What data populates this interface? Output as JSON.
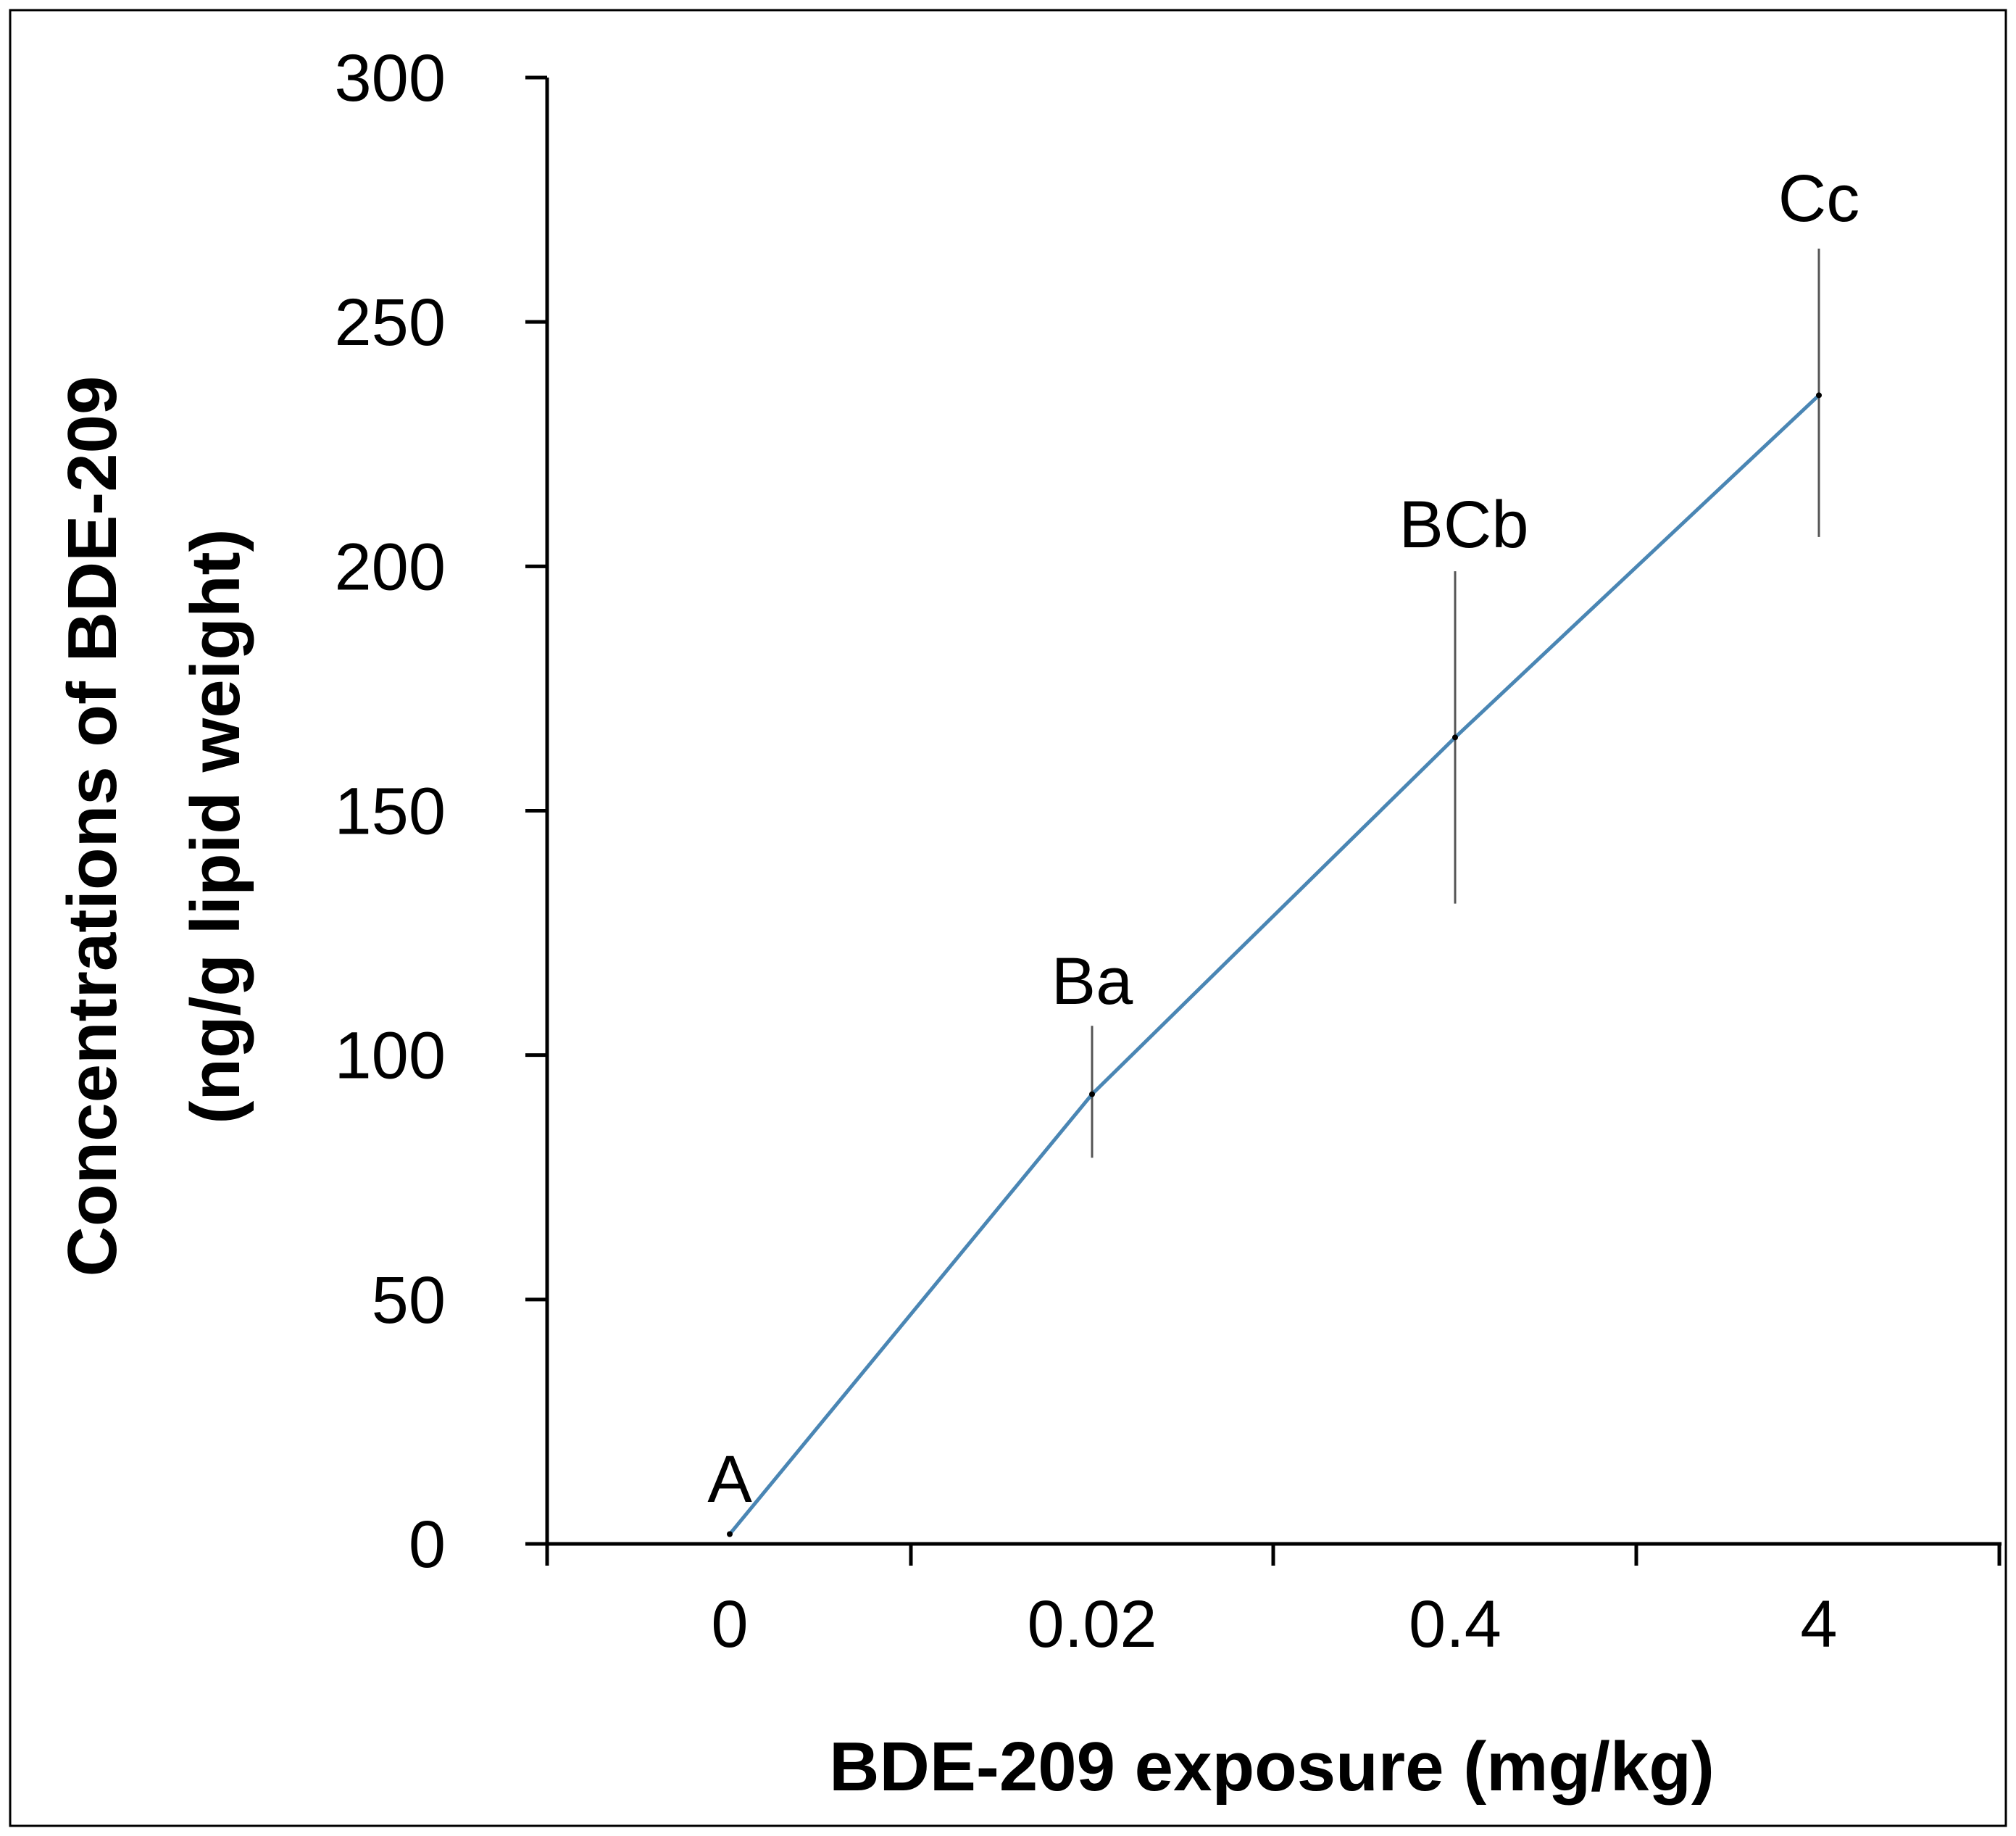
{
  "chart_data": {
    "type": "line",
    "categories": [
      "0",
      "0.02",
      "0.4",
      "4"
    ],
    "values": [
      2,
      92,
      165,
      235
    ],
    "error_bars": [
      {
        "low": 2,
        "high": 2
      },
      {
        "low": 79,
        "high": 106
      },
      {
        "low": 131,
        "high": 199
      },
      {
        "low": 206,
        "high": 265
      }
    ],
    "point_labels": [
      "A",
      "Ba",
      "BCb",
      "Cc"
    ],
    "xlabel": "BDE-209 exposure (mg/kg)",
    "ylabel_lines": [
      "Concentrations of BDE-209",
      "(ng/g lipid weight)"
    ],
    "ylim": [
      0,
      300
    ],
    "yticks": [
      0,
      50,
      100,
      150,
      200,
      250,
      300
    ],
    "ytick_labels": [
      "0",
      "50",
      "100",
      "150",
      "200",
      "250",
      "300"
    ],
    "grid": false,
    "legend": "none",
    "colors": {
      "line": "#4a86b4",
      "error_bar": "#555555",
      "axis": "#000000",
      "frame": "#000000"
    }
  }
}
